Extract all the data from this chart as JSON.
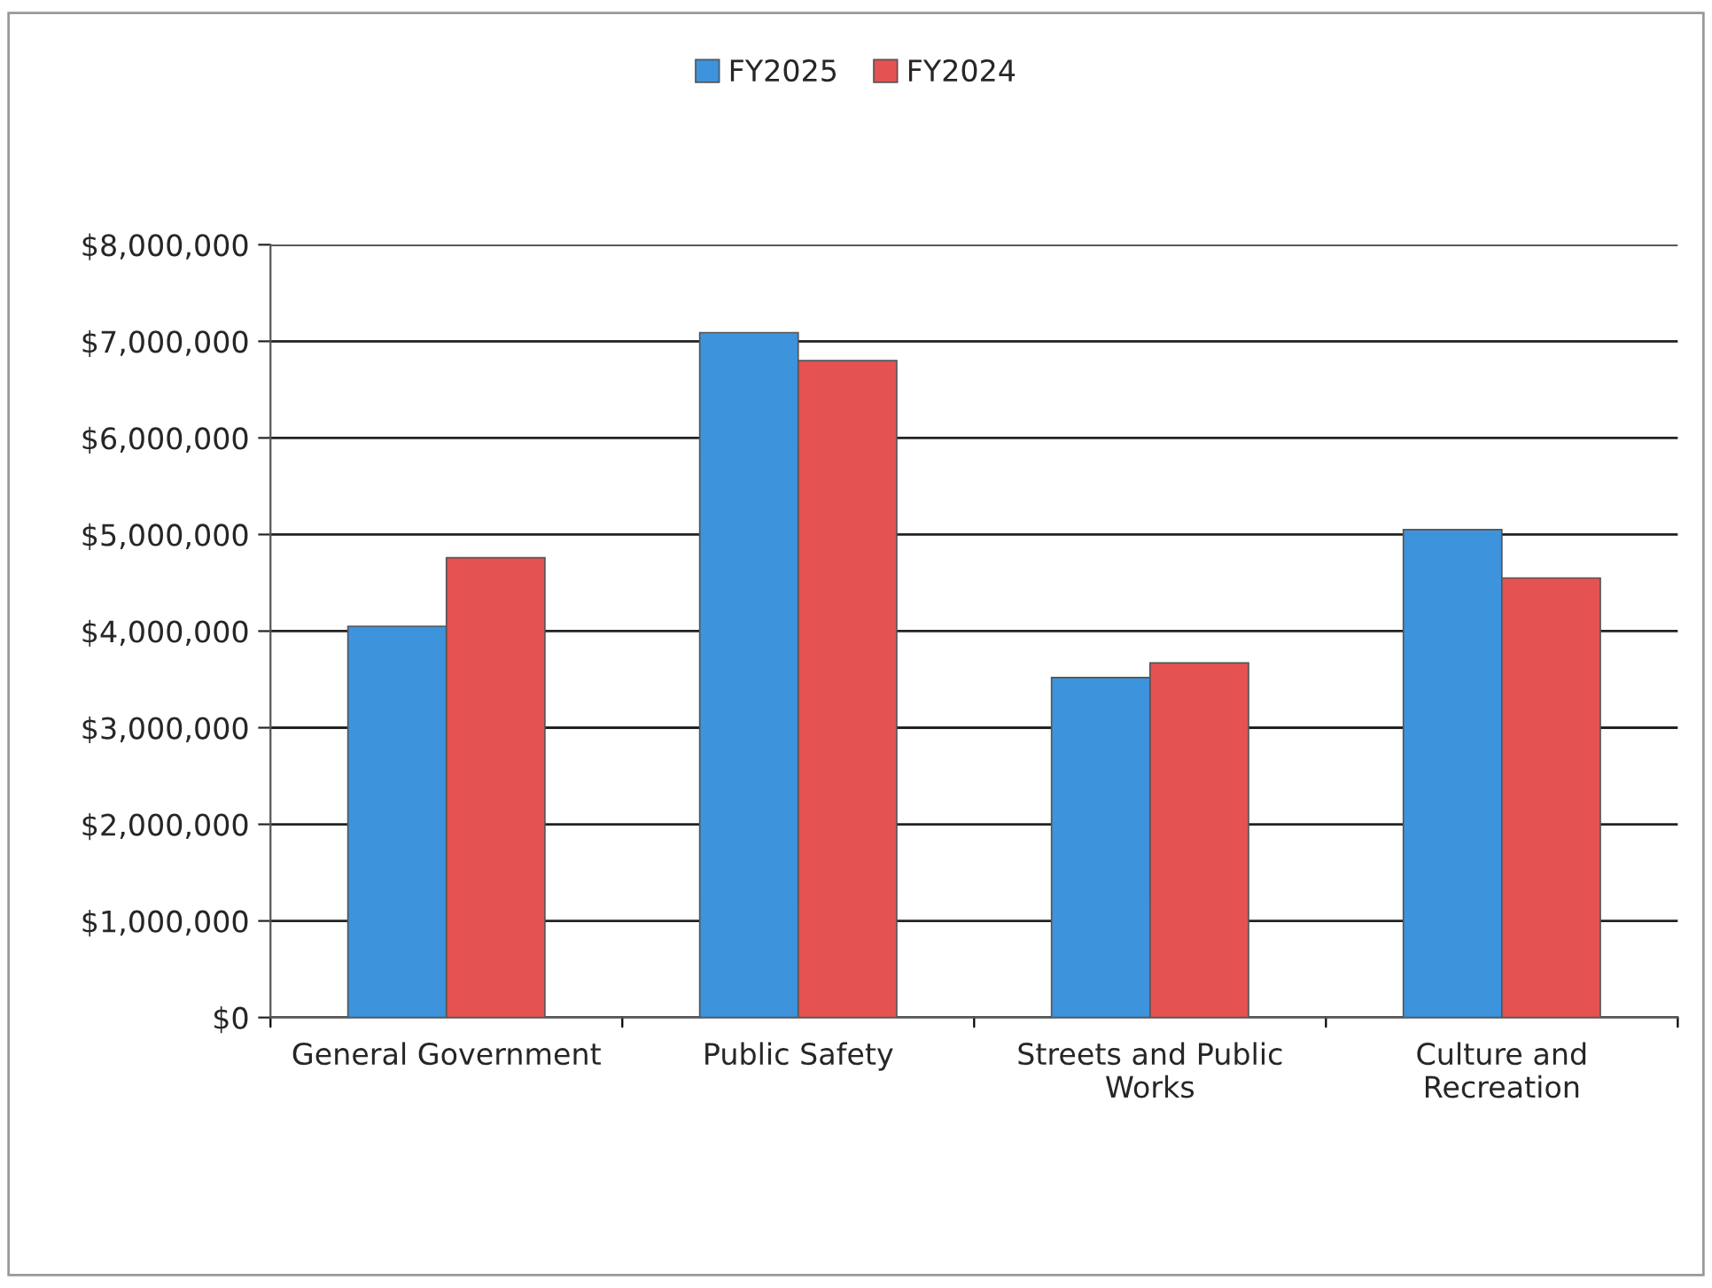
{
  "chart_data": {
    "type": "bar",
    "categories": [
      "General Government",
      "Public Safety",
      "Streets and Public\nWorks",
      "Culture and\nRecreation"
    ],
    "series": [
      {
        "name": "FY2025",
        "color": "#3d93dc",
        "values": [
          4050000,
          7090000,
          3520000,
          5050000
        ]
      },
      {
        "name": "FY2024",
        "color": "#e45252",
        "values": [
          4760000,
          6800000,
          3670000,
          4550000
        ]
      }
    ],
    "ylim": [
      0,
      8000000
    ],
    "yticks": [
      {
        "value": 0,
        "label": "$0"
      },
      {
        "value": 1000000,
        "label": "$1,000,000"
      },
      {
        "value": 2000000,
        "label": "$2,000,000"
      },
      {
        "value": 3000000,
        "label": "$3,000,000"
      },
      {
        "value": 4000000,
        "label": "$4,000,000"
      },
      {
        "value": 5000000,
        "label": "$5,000,000"
      },
      {
        "value": 6000000,
        "label": "$6,000,000"
      },
      {
        "value": 7000000,
        "label": "$7,000,000"
      },
      {
        "value": 8000000,
        "label": "$8,000,000"
      }
    ],
    "grid": "y",
    "legend": "top"
  }
}
